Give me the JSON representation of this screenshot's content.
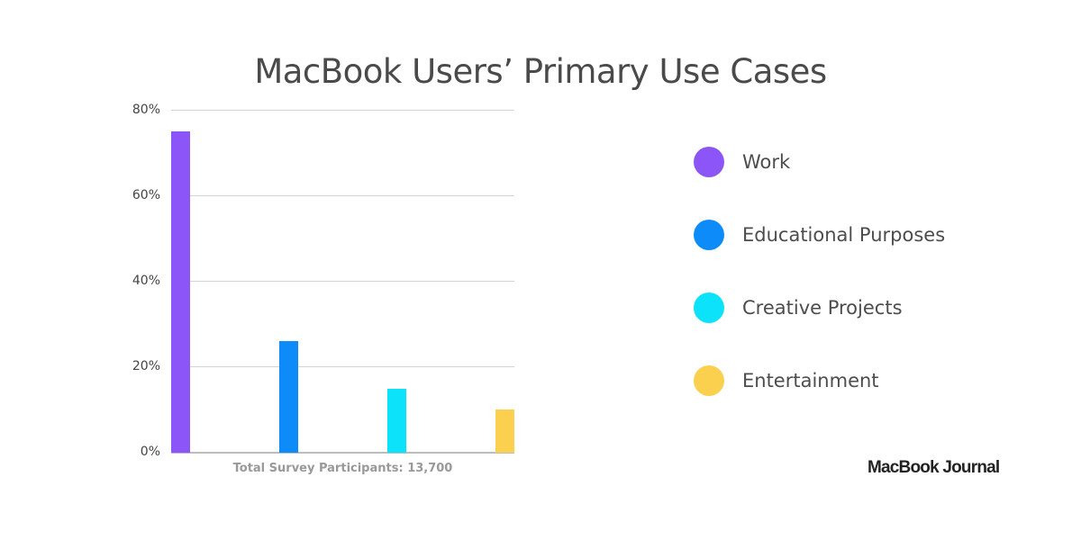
{
  "title": "MacBook Users’ Primary Use Cases",
  "caption": "Total Survey Participants: 13,700",
  "brand": "MacBook Journal",
  "y_ticks": [
    "80%",
    "60%",
    "40%",
    "20%",
    "0%"
  ],
  "legend": [
    {
      "label": "Work",
      "color": "#8b55f7"
    },
    {
      "label": "Educational Purposes",
      "color": "#0d8cf9"
    },
    {
      "label": "Creative Projects",
      "color": "#0de2fb"
    },
    {
      "label": "Entertainment",
      "color": "#fbd04e"
    }
  ],
  "chart_data": {
    "type": "bar",
    "title": "MacBook Users’ Primary Use Cases",
    "categories": [
      "Work",
      "Educational Purposes",
      "Creative Projects",
      "Entertainment"
    ],
    "values": [
      75,
      26,
      15,
      10
    ],
    "unit": "%",
    "colors": [
      "#8b55f7",
      "#0d8cf9",
      "#0de2fb",
      "#fbd04e"
    ],
    "xlabel": "Total Survey Participants: 13,700",
    "ylabel": "",
    "ylim": [
      0,
      80
    ],
    "yticks": [
      0,
      20,
      40,
      60,
      80
    ],
    "grid": true,
    "legend_position": "right"
  }
}
